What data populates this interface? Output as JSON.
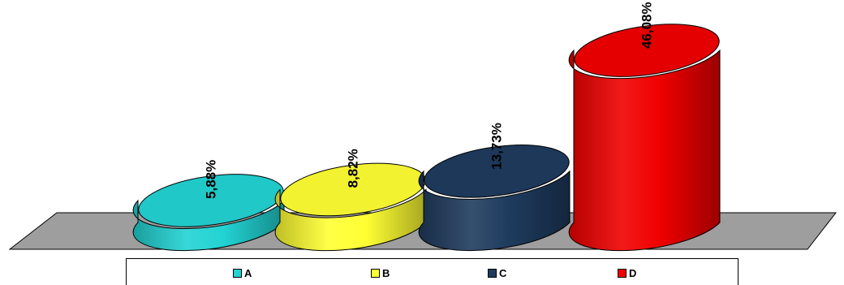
{
  "chart_data": {
    "type": "bar",
    "style": "3d-cylinder",
    "categories": [
      "A",
      "B",
      "C",
      "D"
    ],
    "values": [
      5.88,
      8.82,
      13.73,
      46.08
    ],
    "data_labels": [
      "5,88%",
      "8,82%",
      "13,73%",
      "46,08%"
    ],
    "colors": [
      "#22d3d3",
      "#ffff33",
      "#1e3b5e",
      "#f00000"
    ],
    "floor_color": "#9e9e9e",
    "title": "",
    "xlabel": "",
    "ylabel": "",
    "ylim": [
      0,
      50
    ],
    "grid": false,
    "legend": {
      "position": "bottom",
      "items": [
        {
          "label": "A",
          "color": "#22d3d3"
        },
        {
          "label": "B",
          "color": "#ffff33"
        },
        {
          "label": "C",
          "color": "#1e3b5e"
        },
        {
          "label": "D",
          "color": "#f00000"
        }
      ]
    }
  }
}
